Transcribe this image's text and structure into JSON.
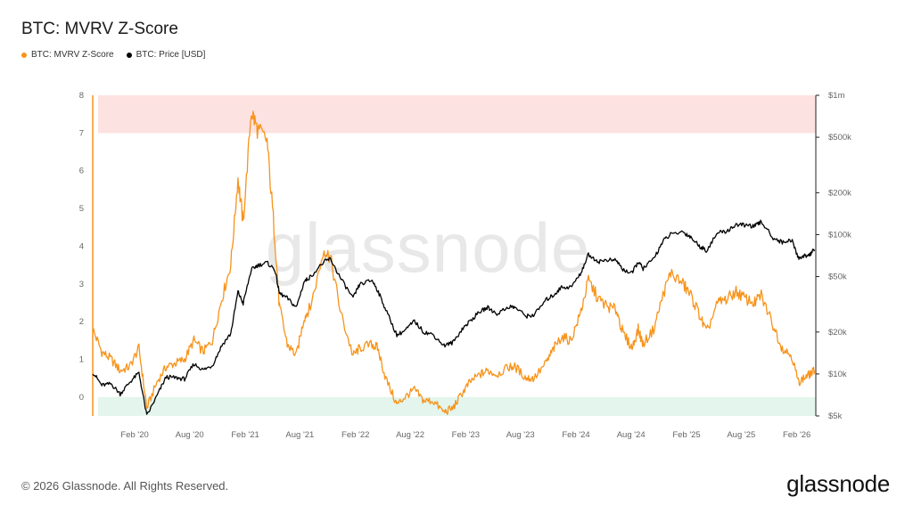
{
  "header": {
    "title": "BTC: MVRV Z-Score",
    "legend": [
      {
        "label": "BTC: MVRV Z-Score",
        "color": "#f7931a"
      },
      {
        "label": "BTC: Price [USD]",
        "color": "#000000"
      }
    ]
  },
  "watermark": "glassnode",
  "footer": {
    "copyright": "© 2026 Glassnode. All Rights Reserved.",
    "brand": "glassnode"
  },
  "chart_data": {
    "type": "line",
    "title": "BTC: MVRV Z-Score",
    "x_tick_labels": [
      "Feb '20",
      "Aug '20",
      "Feb '21",
      "Aug '21",
      "Feb '22",
      "Aug '22",
      "Feb '23",
      "Aug '23",
      "Feb '24",
      "Aug '24",
      "Feb '25",
      "Aug '25",
      "Feb '26"
    ],
    "x_tick_dates": [
      "2020-02-01",
      "2020-08-01",
      "2021-02-01",
      "2021-08-01",
      "2022-02-01",
      "2022-08-01",
      "2023-02-01",
      "2023-08-01",
      "2024-02-01",
      "2024-08-01",
      "2025-02-01",
      "2025-08-01",
      "2026-02-01"
    ],
    "xlim": [
      "2019-09-15",
      "2026-04-05"
    ],
    "y_left": {
      "ticks": [
        0,
        1,
        2,
        3,
        4,
        5,
        6,
        7,
        8
      ],
      "ylim": [
        -0.5,
        8
      ]
    },
    "y_right": {
      "scale": "log",
      "ticks": [
        5000,
        10000,
        20000,
        50000,
        100000,
        200000,
        500000,
        1000000
      ],
      "tick_labels": [
        "$5k",
        "$10k",
        "$20k",
        "$50k",
        "$100k",
        "$200k",
        "$500k",
        "$1m"
      ],
      "ylim": [
        5000,
        1000000
      ]
    },
    "zones": [
      {
        "axis": "left",
        "from": 7,
        "to": 8,
        "color": "#fde2e2"
      },
      {
        "axis": "left",
        "from": -0.5,
        "to": 0,
        "color": "#e3f5ec"
      }
    ],
    "series": [
      {
        "name": "BTC: MVRV Z-Score",
        "color": "#f7931a",
        "axis": "left",
        "points": [
          [
            "2019-09-15",
            1.8
          ],
          [
            "2019-10-15",
            1.2
          ],
          [
            "2019-11-15",
            1.0
          ],
          [
            "2019-12-15",
            0.7
          ],
          [
            "2020-01-15",
            0.8
          ],
          [
            "2020-02-15",
            1.3
          ],
          [
            "2020-03-12",
            -0.3
          ],
          [
            "2020-04-15",
            0.4
          ],
          [
            "2020-05-15",
            0.8
          ],
          [
            "2020-06-15",
            0.9
          ],
          [
            "2020-07-15",
            1.0
          ],
          [
            "2020-08-15",
            1.5
          ],
          [
            "2020-09-15",
            1.2
          ],
          [
            "2020-10-15",
            1.5
          ],
          [
            "2020-11-15",
            2.6
          ],
          [
            "2020-12-15",
            3.5
          ],
          [
            "2021-01-08",
            5.8
          ],
          [
            "2021-01-25",
            4.6
          ],
          [
            "2021-02-21",
            7.6
          ],
          [
            "2021-03-13",
            7.1
          ],
          [
            "2021-04-14",
            6.8
          ],
          [
            "2021-05-10",
            4.2
          ],
          [
            "2021-05-25",
            2.4
          ],
          [
            "2021-06-20",
            1.4
          ],
          [
            "2021-07-20",
            1.1
          ],
          [
            "2021-08-15",
            2.1
          ],
          [
            "2021-09-05",
            2.4
          ],
          [
            "2021-10-20",
            3.9
          ],
          [
            "2021-11-10",
            3.7
          ],
          [
            "2021-12-15",
            2.2
          ],
          [
            "2022-01-24",
            1.1
          ],
          [
            "2022-02-15",
            1.3
          ],
          [
            "2022-03-28",
            1.4
          ],
          [
            "2022-04-15",
            1.3
          ],
          [
            "2022-05-12",
            0.5
          ],
          [
            "2022-06-18",
            -0.2
          ],
          [
            "2022-07-15",
            0.0
          ],
          [
            "2022-08-15",
            0.2
          ],
          [
            "2022-09-15",
            -0.1
          ],
          [
            "2022-10-15",
            -0.1
          ],
          [
            "2022-11-21",
            -0.4
          ],
          [
            "2022-12-20",
            -0.3
          ],
          [
            "2023-01-20",
            0.1
          ],
          [
            "2023-02-15",
            0.4
          ],
          [
            "2023-03-20",
            0.6
          ],
          [
            "2023-04-15",
            0.7
          ],
          [
            "2023-05-15",
            0.6
          ],
          [
            "2023-06-25",
            0.8
          ],
          [
            "2023-07-15",
            0.8
          ],
          [
            "2023-08-20",
            0.5
          ],
          [
            "2023-09-15",
            0.5
          ],
          [
            "2023-10-25",
            0.9
          ],
          [
            "2023-11-20",
            1.3
          ],
          [
            "2023-12-15",
            1.6
          ],
          [
            "2024-01-15",
            1.5
          ],
          [
            "2024-02-15",
            2.2
          ],
          [
            "2024-03-13",
            3.1
          ],
          [
            "2024-04-15",
            2.6
          ],
          [
            "2024-05-15",
            2.4
          ],
          [
            "2024-06-15",
            2.3
          ],
          [
            "2024-07-05",
            1.7
          ],
          [
            "2024-08-05",
            1.3
          ],
          [
            "2024-08-25",
            1.8
          ],
          [
            "2024-09-10",
            1.4
          ],
          [
            "2024-10-15",
            1.8
          ],
          [
            "2024-11-15",
            2.7
          ],
          [
            "2024-12-10",
            3.3
          ],
          [
            "2025-01-20",
            3.0
          ],
          [
            "2025-02-15",
            2.7
          ],
          [
            "2025-03-15",
            2.2
          ],
          [
            "2025-04-08",
            1.7
          ],
          [
            "2025-05-15",
            2.5
          ],
          [
            "2025-06-15",
            2.6
          ],
          [
            "2025-07-15",
            2.8
          ],
          [
            "2025-08-15",
            2.6
          ],
          [
            "2025-09-15",
            2.5
          ],
          [
            "2025-10-06",
            2.7
          ],
          [
            "2025-11-15",
            1.9
          ],
          [
            "2025-12-15",
            1.3
          ],
          [
            "2026-01-15",
            1.1
          ],
          [
            "2026-02-06",
            0.4
          ],
          [
            "2026-02-25",
            0.5
          ],
          [
            "2026-03-15",
            0.6
          ],
          [
            "2026-04-01",
            0.7
          ]
        ]
      },
      {
        "name": "BTC: Price [USD]",
        "color": "#000000",
        "axis": "right",
        "points": [
          [
            "2019-09-15",
            10300
          ],
          [
            "2019-10-15",
            8300
          ],
          [
            "2019-11-15",
            8500
          ],
          [
            "2019-12-15",
            7200
          ],
          [
            "2020-01-15",
            8700
          ],
          [
            "2020-02-15",
            10200
          ],
          [
            "2020-03-12",
            5000
          ],
          [
            "2020-04-15",
            7000
          ],
          [
            "2020-05-15",
            9500
          ],
          [
            "2020-06-15",
            9400
          ],
          [
            "2020-07-15",
            9200
          ],
          [
            "2020-08-15",
            11800
          ],
          [
            "2020-09-15",
            10700
          ],
          [
            "2020-10-15",
            11500
          ],
          [
            "2020-11-15",
            16000
          ],
          [
            "2020-12-15",
            19500
          ],
          [
            "2021-01-08",
            39000
          ],
          [
            "2021-01-25",
            32000
          ],
          [
            "2021-02-21",
            56000
          ],
          [
            "2021-03-13",
            60000
          ],
          [
            "2021-04-14",
            63000
          ],
          [
            "2021-05-10",
            56000
          ],
          [
            "2021-05-25",
            38000
          ],
          [
            "2021-06-20",
            35000
          ],
          [
            "2021-07-20",
            30000
          ],
          [
            "2021-08-15",
            46000
          ],
          [
            "2021-09-05",
            50000
          ],
          [
            "2021-10-20",
            64000
          ],
          [
            "2021-11-10",
            67000
          ],
          [
            "2021-12-15",
            48000
          ],
          [
            "2022-01-24",
            35000
          ],
          [
            "2022-02-15",
            44000
          ],
          [
            "2022-03-28",
            47000
          ],
          [
            "2022-04-15",
            40000
          ],
          [
            "2022-05-12",
            29000
          ],
          [
            "2022-06-18",
            19000
          ],
          [
            "2022-07-15",
            20500
          ],
          [
            "2022-08-15",
            24000
          ],
          [
            "2022-09-15",
            20000
          ],
          [
            "2022-10-15",
            19200
          ],
          [
            "2022-11-21",
            16000
          ],
          [
            "2022-12-20",
            16800
          ],
          [
            "2023-01-20",
            21000
          ],
          [
            "2023-02-15",
            24000
          ],
          [
            "2023-03-20",
            28000
          ],
          [
            "2023-04-15",
            30000
          ],
          [
            "2023-05-15",
            27000
          ],
          [
            "2023-06-25",
            30500
          ],
          [
            "2023-07-15",
            30000
          ],
          [
            "2023-08-20",
            26000
          ],
          [
            "2023-09-15",
            26500
          ],
          [
            "2023-10-25",
            34000
          ],
          [
            "2023-11-20",
            37000
          ],
          [
            "2023-12-15",
            42000
          ],
          [
            "2024-01-15",
            42000
          ],
          [
            "2024-02-15",
            52000
          ],
          [
            "2024-03-13",
            72000
          ],
          [
            "2024-04-15",
            64000
          ],
          [
            "2024-05-15",
            66000
          ],
          [
            "2024-06-15",
            65000
          ],
          [
            "2024-07-05",
            56000
          ],
          [
            "2024-08-05",
            53000
          ],
          [
            "2024-08-25",
            64000
          ],
          [
            "2024-09-10",
            57000
          ],
          [
            "2024-10-15",
            67000
          ],
          [
            "2024-11-15",
            90000
          ],
          [
            "2024-12-10",
            100000
          ],
          [
            "2025-01-20",
            105000
          ],
          [
            "2025-02-15",
            96000
          ],
          [
            "2025-03-15",
            83000
          ],
          [
            "2025-04-08",
            77000
          ],
          [
            "2025-05-15",
            103000
          ],
          [
            "2025-06-15",
            106000
          ],
          [
            "2025-07-15",
            118000
          ],
          [
            "2025-08-15",
            117000
          ],
          [
            "2025-09-15",
            115000
          ],
          [
            "2025-10-06",
            124000
          ],
          [
            "2025-11-15",
            95000
          ],
          [
            "2025-12-15",
            88000
          ],
          [
            "2026-01-15",
            92000
          ],
          [
            "2026-02-06",
            68000
          ],
          [
            "2026-02-25",
            70000
          ],
          [
            "2026-03-15",
            72000
          ],
          [
            "2026-04-01",
            78000
          ]
        ]
      }
    ]
  }
}
